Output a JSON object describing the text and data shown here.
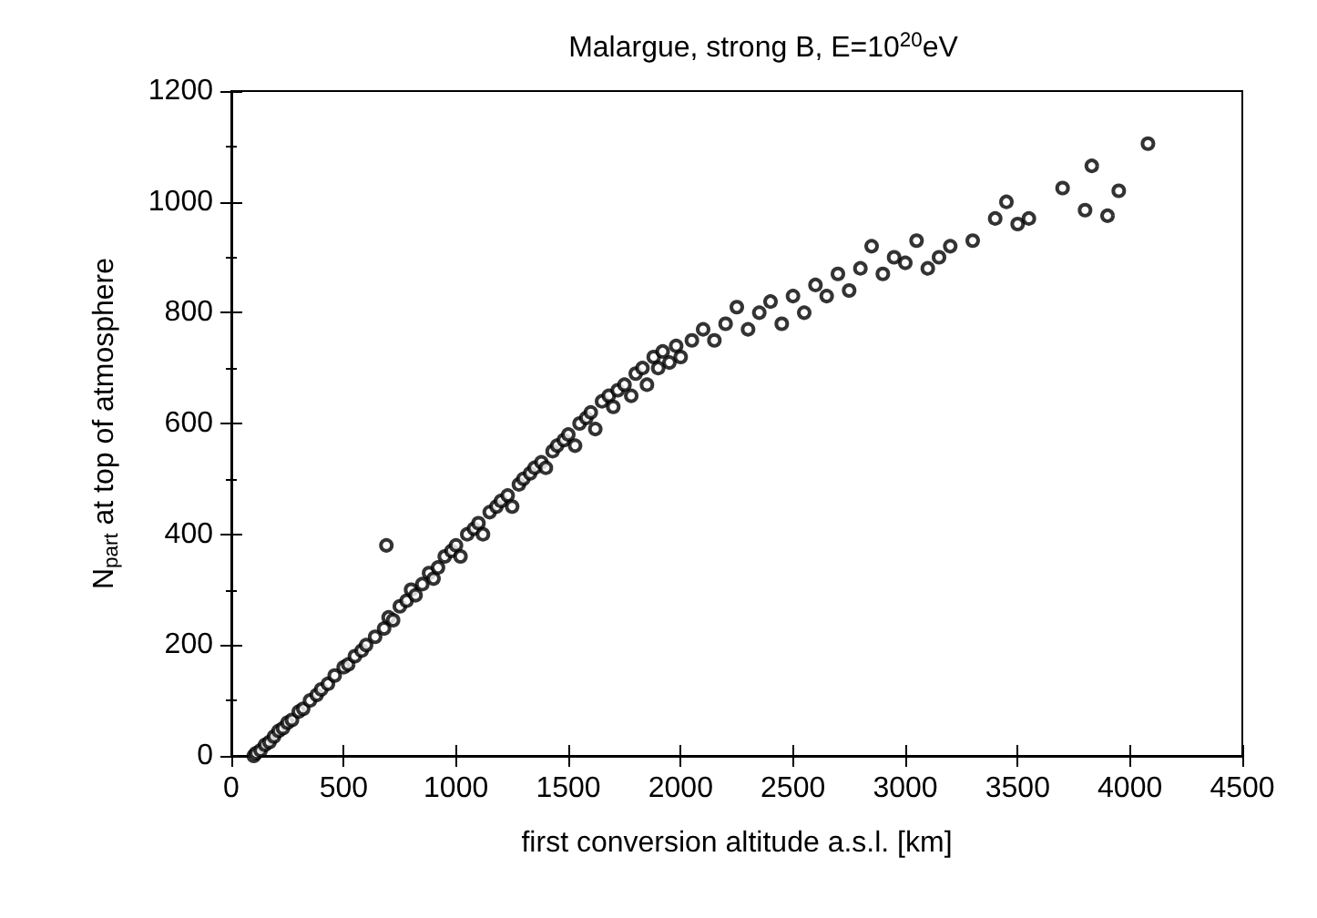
{
  "chart_data": {
    "type": "scatter",
    "title": "Malargue, strong B, E=10$^{20}$eV",
    "xlabel": "first conversion altitude a.s.l. [km]",
    "ylabel": "N$_{part}$ at top of atmosphere",
    "marker": "circle",
    "grid": false,
    "xlim": [
      0,
      4500
    ],
    "xticks": [
      0,
      500,
      1000,
      1500,
      2000,
      2500,
      3000,
      3500,
      4000,
      4500
    ],
    "ylim": [
      0,
      1200
    ],
    "yticks": [
      0,
      200,
      400,
      600,
      800,
      1000,
      1200
    ],
    "series": [
      {
        "color": "#000000",
        "x": [
          100,
          110,
          130,
          150,
          170,
          190,
          210,
          230,
          250,
          270,
          300,
          320,
          350,
          380,
          400,
          430,
          460,
          500,
          520,
          550,
          580,
          600,
          640,
          680,
          690,
          700,
          720,
          750,
          780,
          800,
          820,
          850,
          880,
          900,
          920,
          950,
          980,
          1000,
          1020,
          1050,
          1080,
          1100,
          1120,
          1150,
          1180,
          1200,
          1230,
          1250,
          1280,
          1300,
          1330,
          1350,
          1380,
          1400,
          1430,
          1450,
          1480,
          1500,
          1530,
          1550,
          1580,
          1600,
          1620,
          1650,
          1680,
          1700,
          1720,
          1750,
          1780,
          1800,
          1830,
          1850,
          1880,
          1900,
          1920,
          1950,
          1980,
          2000,
          2050,
          2100,
          2150,
          2200,
          2250,
          2300,
          2350,
          2400,
          2450,
          2500,
          2550,
          2600,
          2650,
          2700,
          2750,
          2800,
          2850,
          2900,
          2950,
          3000,
          3050,
          3100,
          3150,
          3200,
          3300,
          3400,
          3450,
          3500,
          3550,
          3700,
          3800,
          3830,
          3900,
          3950,
          4080
        ],
        "values": [
          0,
          5,
          10,
          20,
          25,
          35,
          45,
          50,
          60,
          65,
          80,
          85,
          100,
          110,
          120,
          130,
          145,
          160,
          165,
          180,
          190,
          200,
          215,
          230,
          380,
          250,
          245,
          270,
          280,
          300,
          290,
          310,
          330,
          320,
          340,
          360,
          370,
          380,
          360,
          400,
          410,
          420,
          400,
          440,
          450,
          460,
          470,
          450,
          490,
          500,
          510,
          520,
          530,
          520,
          550,
          560,
          570,
          580,
          560,
          600,
          610,
          620,
          590,
          640,
          650,
          630,
          660,
          670,
          650,
          690,
          700,
          670,
          720,
          700,
          730,
          710,
          740,
          720,
          750,
          770,
          750,
          780,
          810,
          770,
          800,
          820,
          780,
          830,
          800,
          850,
          830,
          870,
          840,
          880,
          920,
          870,
          900,
          890,
          930,
          880,
          900,
          920,
          930,
          970,
          1000,
          960,
          970,
          1025,
          985,
          1065,
          975,
          1020,
          1105
        ]
      }
    ]
  }
}
